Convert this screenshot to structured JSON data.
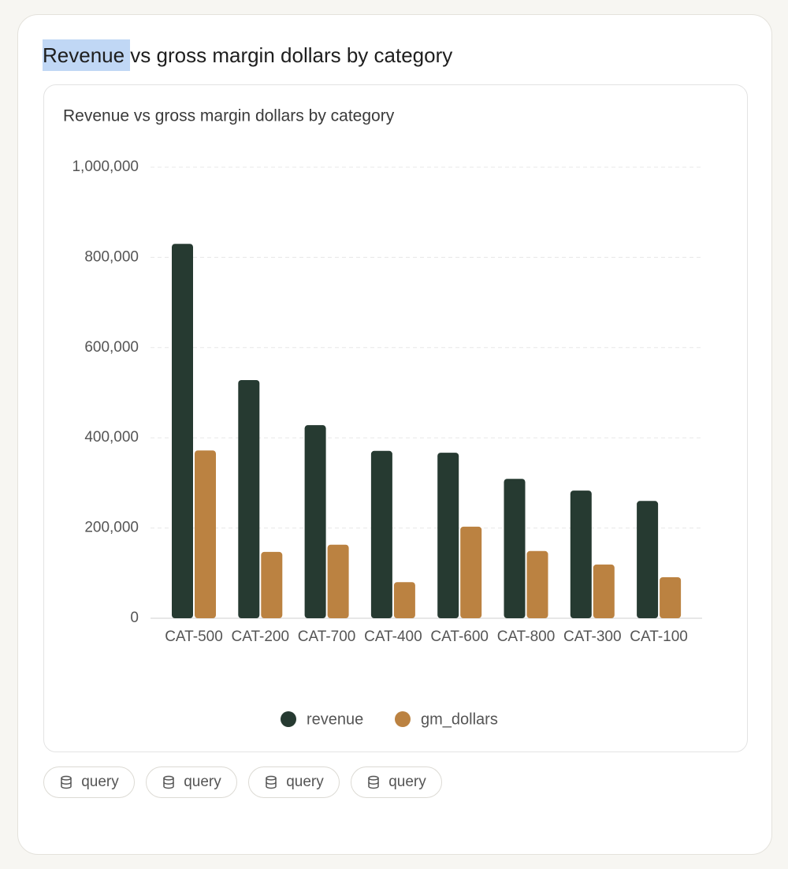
{
  "page_title": "Revenue vs gross margin dollars by category",
  "buttons": [
    "query",
    "query",
    "query",
    "query"
  ],
  "chart_data": {
    "type": "bar",
    "title": "Revenue vs gross margin dollars by category",
    "categories": [
      "CAT-500",
      "CAT-200",
      "CAT-700",
      "CAT-400",
      "CAT-600",
      "CAT-800",
      "CAT-300",
      "CAT-100"
    ],
    "series": [
      {
        "name": "revenue",
        "color": "#263a31",
        "values": [
          830000,
          528000,
          428000,
          371000,
          367000,
          309000,
          283000,
          260000
        ]
      },
      {
        "name": "gm_dollars",
        "color": "#bb8241",
        "values": [
          372000,
          147000,
          163000,
          80000,
          203000,
          149000,
          119000,
          91000
        ]
      }
    ],
    "ylim": [
      0,
      1000000
    ],
    "yticks": [
      0,
      {
        "value": 200000,
        "label": "200,000"
      },
      {
        "value": 400000,
        "label": "400,000"
      },
      {
        "value": 600000,
        "label": "600,000"
      },
      {
        "value": 800000,
        "label": "800,000"
      },
      {
        "value": 1000000,
        "label": "1,000,000"
      }
    ],
    "grid": true,
    "legend": "bottom"
  }
}
